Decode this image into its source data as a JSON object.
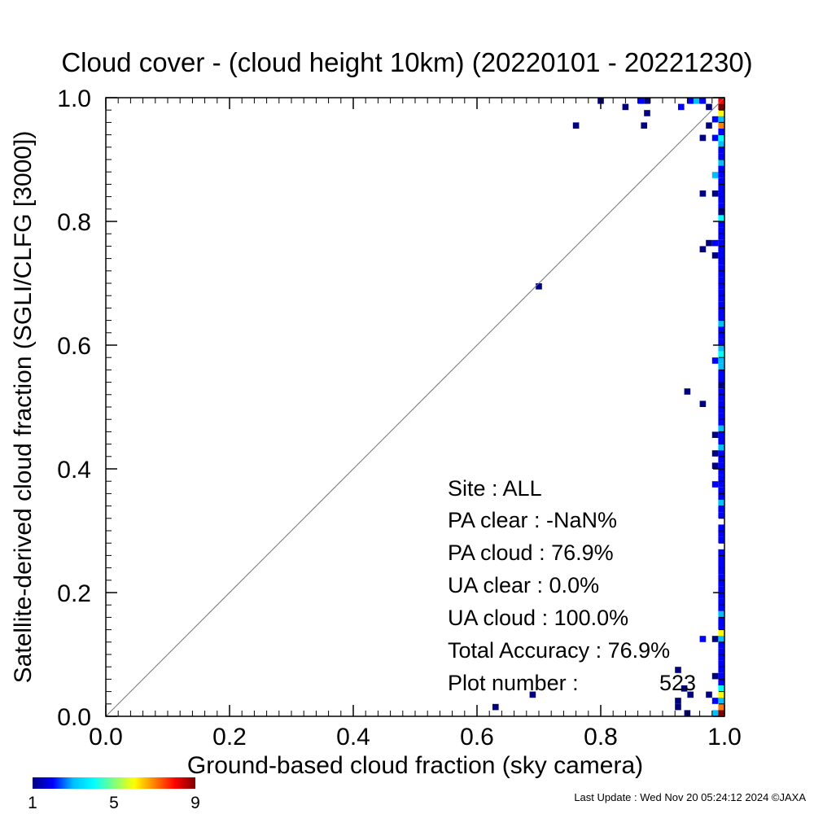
{
  "chart_data": {
    "type": "heatmap",
    "title": "Cloud cover - (cloud height 10km)  (20220101 - 20221230)",
    "xlabel": "Ground-based cloud fraction (sky camera)",
    "ylabel": "Satellite-derived cloud fraction (SGLI/CLFG [3000])",
    "xlim": [
      0.0,
      1.0
    ],
    "ylim": [
      0.0,
      1.0
    ],
    "x_ticks": [
      "0.0",
      "0.2",
      "0.4",
      "0.6",
      "0.8",
      "1.0"
    ],
    "y_ticks": [
      "0.0",
      "0.2",
      "0.4",
      "0.6",
      "0.8",
      "1.0"
    ],
    "grid": false,
    "diagonal_line": true,
    "bin_size": 0.01,
    "colorbar": {
      "min": 1,
      "max": 9,
      "ticks": [
        "1",
        "5",
        "9"
      ],
      "colors": [
        "#00007f",
        "#0000ff",
        "#00bfff",
        "#00ffff",
        "#7fff7f",
        "#ffff00",
        "#ff7f00",
        "#ff0000",
        "#7f0000"
      ]
    },
    "cells": [
      [
        0.8,
        0.995,
        1
      ],
      [
        0.84,
        0.985,
        1
      ],
      [
        0.865,
        0.995,
        2
      ],
      [
        0.875,
        0.995,
        1
      ],
      [
        0.875,
        0.975,
        1
      ],
      [
        0.87,
        0.955,
        1
      ],
      [
        0.76,
        0.955,
        1
      ],
      [
        0.93,
        0.985,
        2
      ],
      [
        0.945,
        0.995,
        2
      ],
      [
        0.955,
        0.995,
        3
      ],
      [
        0.965,
        0.995,
        2
      ],
      [
        0.975,
        0.985,
        1
      ],
      [
        0.965,
        0.935,
        1
      ],
      [
        0.975,
        0.955,
        1
      ],
      [
        0.985,
        0.965,
        2
      ],
      [
        0.985,
        0.935,
        2
      ],
      [
        0.965,
        0.845,
        1
      ],
      [
        0.985,
        0.845,
        1
      ],
      [
        0.985,
        0.875,
        3
      ],
      [
        0.975,
        0.765,
        1
      ],
      [
        0.985,
        0.765,
        2
      ],
      [
        0.985,
        0.745,
        1
      ],
      [
        0.965,
        0.755,
        1
      ],
      [
        0.7,
        0.695,
        1
      ],
      [
        0.94,
        0.525,
        1
      ],
      [
        0.965,
        0.505,
        1
      ],
      [
        0.985,
        0.575,
        2
      ],
      [
        0.985,
        0.455,
        1
      ],
      [
        0.985,
        0.425,
        1
      ],
      [
        0.985,
        0.405,
        1
      ],
      [
        0.985,
        0.375,
        2
      ],
      [
        0.925,
        0.075,
        1
      ],
      [
        0.925,
        0.025,
        1
      ],
      [
        0.925,
        0.015,
        1
      ],
      [
        0.935,
        0.045,
        1
      ],
      [
        0.945,
        0.035,
        1
      ],
      [
        0.965,
        0.125,
        2
      ],
      [
        0.975,
        0.035,
        1
      ],
      [
        0.985,
        0.065,
        1
      ],
      [
        0.985,
        0.025,
        2
      ],
      [
        0.985,
        0.005,
        3
      ],
      [
        0.69,
        0.035,
        1
      ],
      [
        0.63,
        0.015,
        1
      ],
      [
        0.94,
        0.005,
        1
      ],
      [
        0.985,
        0.125,
        1
      ],
      [
        0.995,
        0.995,
        8
      ],
      [
        0.995,
        0.985,
        9
      ],
      [
        0.995,
        0.975,
        6
      ],
      [
        0.995,
        0.965,
        3
      ],
      [
        0.995,
        0.955,
        7
      ],
      [
        0.995,
        0.945,
        2
      ],
      [
        0.995,
        0.935,
        4
      ],
      [
        0.995,
        0.925,
        3
      ],
      [
        0.995,
        0.915,
        2
      ],
      [
        0.995,
        0.905,
        2
      ],
      [
        0.995,
        0.895,
        3
      ],
      [
        0.995,
        0.885,
        2
      ],
      [
        0.995,
        0.875,
        2
      ],
      [
        0.995,
        0.865,
        2
      ],
      [
        0.995,
        0.855,
        2
      ],
      [
        0.995,
        0.845,
        2
      ],
      [
        0.995,
        0.835,
        2
      ],
      [
        0.995,
        0.825,
        2
      ],
      [
        0.995,
        0.815,
        1
      ],
      [
        0.995,
        0.805,
        4
      ],
      [
        0.995,
        0.795,
        2
      ],
      [
        0.995,
        0.785,
        2
      ],
      [
        0.995,
        0.775,
        2
      ],
      [
        0.995,
        0.765,
        2
      ],
      [
        0.995,
        0.755,
        2
      ],
      [
        0.995,
        0.745,
        2
      ],
      [
        0.995,
        0.735,
        2
      ],
      [
        0.995,
        0.725,
        2
      ],
      [
        0.995,
        0.715,
        2
      ],
      [
        0.995,
        0.705,
        2
      ],
      [
        0.995,
        0.695,
        2
      ],
      [
        0.995,
        0.685,
        2
      ],
      [
        0.995,
        0.675,
        2
      ],
      [
        0.995,
        0.665,
        2
      ],
      [
        0.995,
        0.655,
        2
      ],
      [
        0.995,
        0.645,
        2
      ],
      [
        0.995,
        0.635,
        3
      ],
      [
        0.995,
        0.625,
        2
      ],
      [
        0.995,
        0.615,
        2
      ],
      [
        0.995,
        0.605,
        2
      ],
      [
        0.995,
        0.595,
        3
      ],
      [
        0.995,
        0.585,
        4
      ],
      [
        0.995,
        0.575,
        3
      ],
      [
        0.995,
        0.565,
        3
      ],
      [
        0.995,
        0.555,
        2
      ],
      [
        0.995,
        0.545,
        2
      ],
      [
        0.995,
        0.535,
        1
      ],
      [
        0.995,
        0.525,
        2
      ],
      [
        0.995,
        0.515,
        2
      ],
      [
        0.995,
        0.505,
        2
      ],
      [
        0.995,
        0.495,
        2
      ],
      [
        0.995,
        0.485,
        2
      ],
      [
        0.995,
        0.475,
        2
      ],
      [
        0.995,
        0.465,
        3
      ],
      [
        0.995,
        0.455,
        2
      ],
      [
        0.995,
        0.445,
        2
      ],
      [
        0.995,
        0.435,
        3
      ],
      [
        0.995,
        0.425,
        2
      ],
      [
        0.995,
        0.415,
        2
      ],
      [
        0.995,
        0.405,
        2
      ],
      [
        0.995,
        0.395,
        2
      ],
      [
        0.995,
        0.385,
        2
      ],
      [
        0.995,
        0.375,
        2
      ],
      [
        0.995,
        0.365,
        2
      ],
      [
        0.995,
        0.355,
        2
      ],
      [
        0.995,
        0.345,
        3
      ],
      [
        0.995,
        0.335,
        2
      ],
      [
        0.995,
        0.325,
        2
      ],
      [
        0.995,
        0.305,
        2
      ],
      [
        0.995,
        0.295,
        2
      ],
      [
        0.995,
        0.285,
        2
      ],
      [
        0.995,
        0.265,
        2
      ],
      [
        0.995,
        0.255,
        2
      ],
      [
        0.995,
        0.245,
        2
      ],
      [
        0.995,
        0.235,
        2
      ],
      [
        0.995,
        0.225,
        2
      ],
      [
        0.995,
        0.215,
        2
      ],
      [
        0.995,
        0.205,
        2
      ],
      [
        0.995,
        0.195,
        2
      ],
      [
        0.995,
        0.185,
        2
      ],
      [
        0.995,
        0.175,
        2
      ],
      [
        0.995,
        0.165,
        3
      ],
      [
        0.995,
        0.155,
        2
      ],
      [
        0.995,
        0.145,
        2
      ],
      [
        0.995,
        0.135,
        6
      ],
      [
        0.995,
        0.125,
        3
      ],
      [
        0.995,
        0.115,
        2
      ],
      [
        0.995,
        0.105,
        2
      ],
      [
        0.995,
        0.095,
        2
      ],
      [
        0.995,
        0.085,
        2
      ],
      [
        0.995,
        0.075,
        2
      ],
      [
        0.995,
        0.065,
        2
      ],
      [
        0.995,
        0.055,
        2
      ],
      [
        0.995,
        0.045,
        4
      ],
      [
        0.995,
        0.035,
        6
      ],
      [
        0.995,
        0.025,
        3
      ],
      [
        0.995,
        0.015,
        7
      ],
      [
        0.995,
        0.005,
        9
      ]
    ]
  },
  "stats": {
    "site": "Site : ALL",
    "pa_clear": "PA clear :  -NaN%",
    "pa_cloud": "PA cloud :  76.9%",
    "ua_clear": "UA clear :   0.0%",
    "ua_cloud": "UA cloud : 100.0%",
    "total_accuracy": "Total Accuracy :  76.9%",
    "plot_number_label": "Plot number :",
    "plot_number_value": "523"
  },
  "footer": {
    "last_update": "Last Update : Wed Nov 20 05:24:12 2024  ©JAXA"
  }
}
